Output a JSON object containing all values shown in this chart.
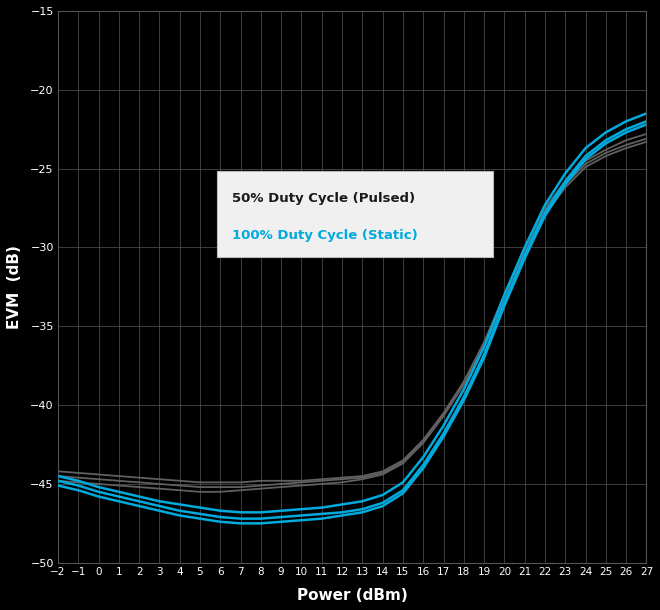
{
  "title": "",
  "xlabel": "Power (dBm)",
  "ylabel": "EVM  (dB)",
  "xlim": [
    -2,
    27
  ],
  "ylim": [
    -50,
    -15
  ],
  "x_ticks": [
    -2,
    -1,
    0,
    1,
    2,
    3,
    4,
    5,
    6,
    7,
    8,
    9,
    10,
    11,
    12,
    13,
    14,
    15,
    16,
    17,
    18,
    19,
    20,
    21,
    22,
    23,
    24,
    25,
    26,
    27
  ],
  "y_ticks": [
    -50,
    -45,
    -40,
    -35,
    -30,
    -25,
    -20,
    -15
  ],
  "background_color": "#000000",
  "grid_color": "#555555",
  "text_color": "#ffffff",
  "legend_label_pulsed": "50% Duty Cycle (Pulsed)",
  "legend_label_static": "100% Duty Cycle (Static)",
  "legend_color_pulsed": "#1a1a2e",
  "legend_color_static": "#00aadd",
  "line_color_pulsed": "#606060",
  "line_color_static": "#00aadd",
  "pulsed_x": [
    -2,
    -1,
    0,
    1,
    2,
    3,
    4,
    5,
    6,
    7,
    8,
    9,
    10,
    11,
    12,
    13,
    14,
    15,
    16,
    17,
    18,
    19,
    20,
    21,
    22,
    23,
    24,
    25,
    26,
    27
  ],
  "pulsed_curves": [
    [
      -44.2,
      -44.3,
      -44.4,
      -44.5,
      -44.6,
      -44.7,
      -44.8,
      -44.9,
      -44.9,
      -44.9,
      -44.8,
      -44.8,
      -44.8,
      -44.7,
      -44.6,
      -44.5,
      -44.2,
      -43.5,
      -42.2,
      -40.5,
      -38.5,
      -36.0,
      -33.0,
      -30.0,
      -27.5,
      -25.8,
      -24.5,
      -23.8,
      -23.2,
      -22.8
    ],
    [
      -44.5,
      -44.6,
      -44.7,
      -44.8,
      -44.9,
      -45.0,
      -45.1,
      -45.2,
      -45.2,
      -45.2,
      -45.1,
      -45.0,
      -44.9,
      -44.8,
      -44.7,
      -44.6,
      -44.3,
      -43.6,
      -42.3,
      -40.6,
      -38.6,
      -36.2,
      -33.2,
      -30.2,
      -27.7,
      -26.0,
      -24.7,
      -24.0,
      -23.5,
      -23.1
    ],
    [
      -44.8,
      -44.9,
      -45.0,
      -45.1,
      -45.2,
      -45.3,
      -45.4,
      -45.5,
      -45.5,
      -45.4,
      -45.3,
      -45.2,
      -45.1,
      -45.0,
      -44.9,
      -44.7,
      -44.4,
      -43.7,
      -42.4,
      -40.7,
      -38.7,
      -36.3,
      -33.4,
      -30.4,
      -27.9,
      -26.2,
      -24.9,
      -24.2,
      -23.7,
      -23.3
    ]
  ],
  "static_curves": [
    [
      -44.8,
      -45.1,
      -45.5,
      -45.8,
      -46.1,
      -46.4,
      -46.7,
      -46.9,
      -47.1,
      -47.2,
      -47.2,
      -47.1,
      -47.0,
      -46.9,
      -46.8,
      -46.6,
      -46.2,
      -45.4,
      -43.8,
      -41.8,
      -39.5,
      -36.8,
      -33.5,
      -30.5,
      -27.8,
      -25.8,
      -24.2,
      -23.2,
      -22.5,
      -22.0
    ],
    [
      -45.1,
      -45.4,
      -45.8,
      -46.1,
      -46.4,
      -46.7,
      -47.0,
      -47.2,
      -47.4,
      -47.5,
      -47.5,
      -47.4,
      -47.3,
      -47.2,
      -47.0,
      -46.8,
      -46.4,
      -45.6,
      -44.0,
      -42.0,
      -39.7,
      -37.0,
      -33.7,
      -30.7,
      -28.0,
      -26.0,
      -24.4,
      -23.4,
      -22.7,
      -22.2
    ],
    [
      -44.5,
      -44.8,
      -45.2,
      -45.5,
      -45.8,
      -46.1,
      -46.3,
      -46.5,
      -46.7,
      -46.8,
      -46.8,
      -46.7,
      -46.6,
      -46.5,
      -46.3,
      -46.1,
      -45.7,
      -44.9,
      -43.3,
      -41.3,
      -39.0,
      -36.3,
      -33.0,
      -30.0,
      -27.3,
      -25.3,
      -23.7,
      -22.7,
      -22.0,
      -21.5
    ]
  ]
}
